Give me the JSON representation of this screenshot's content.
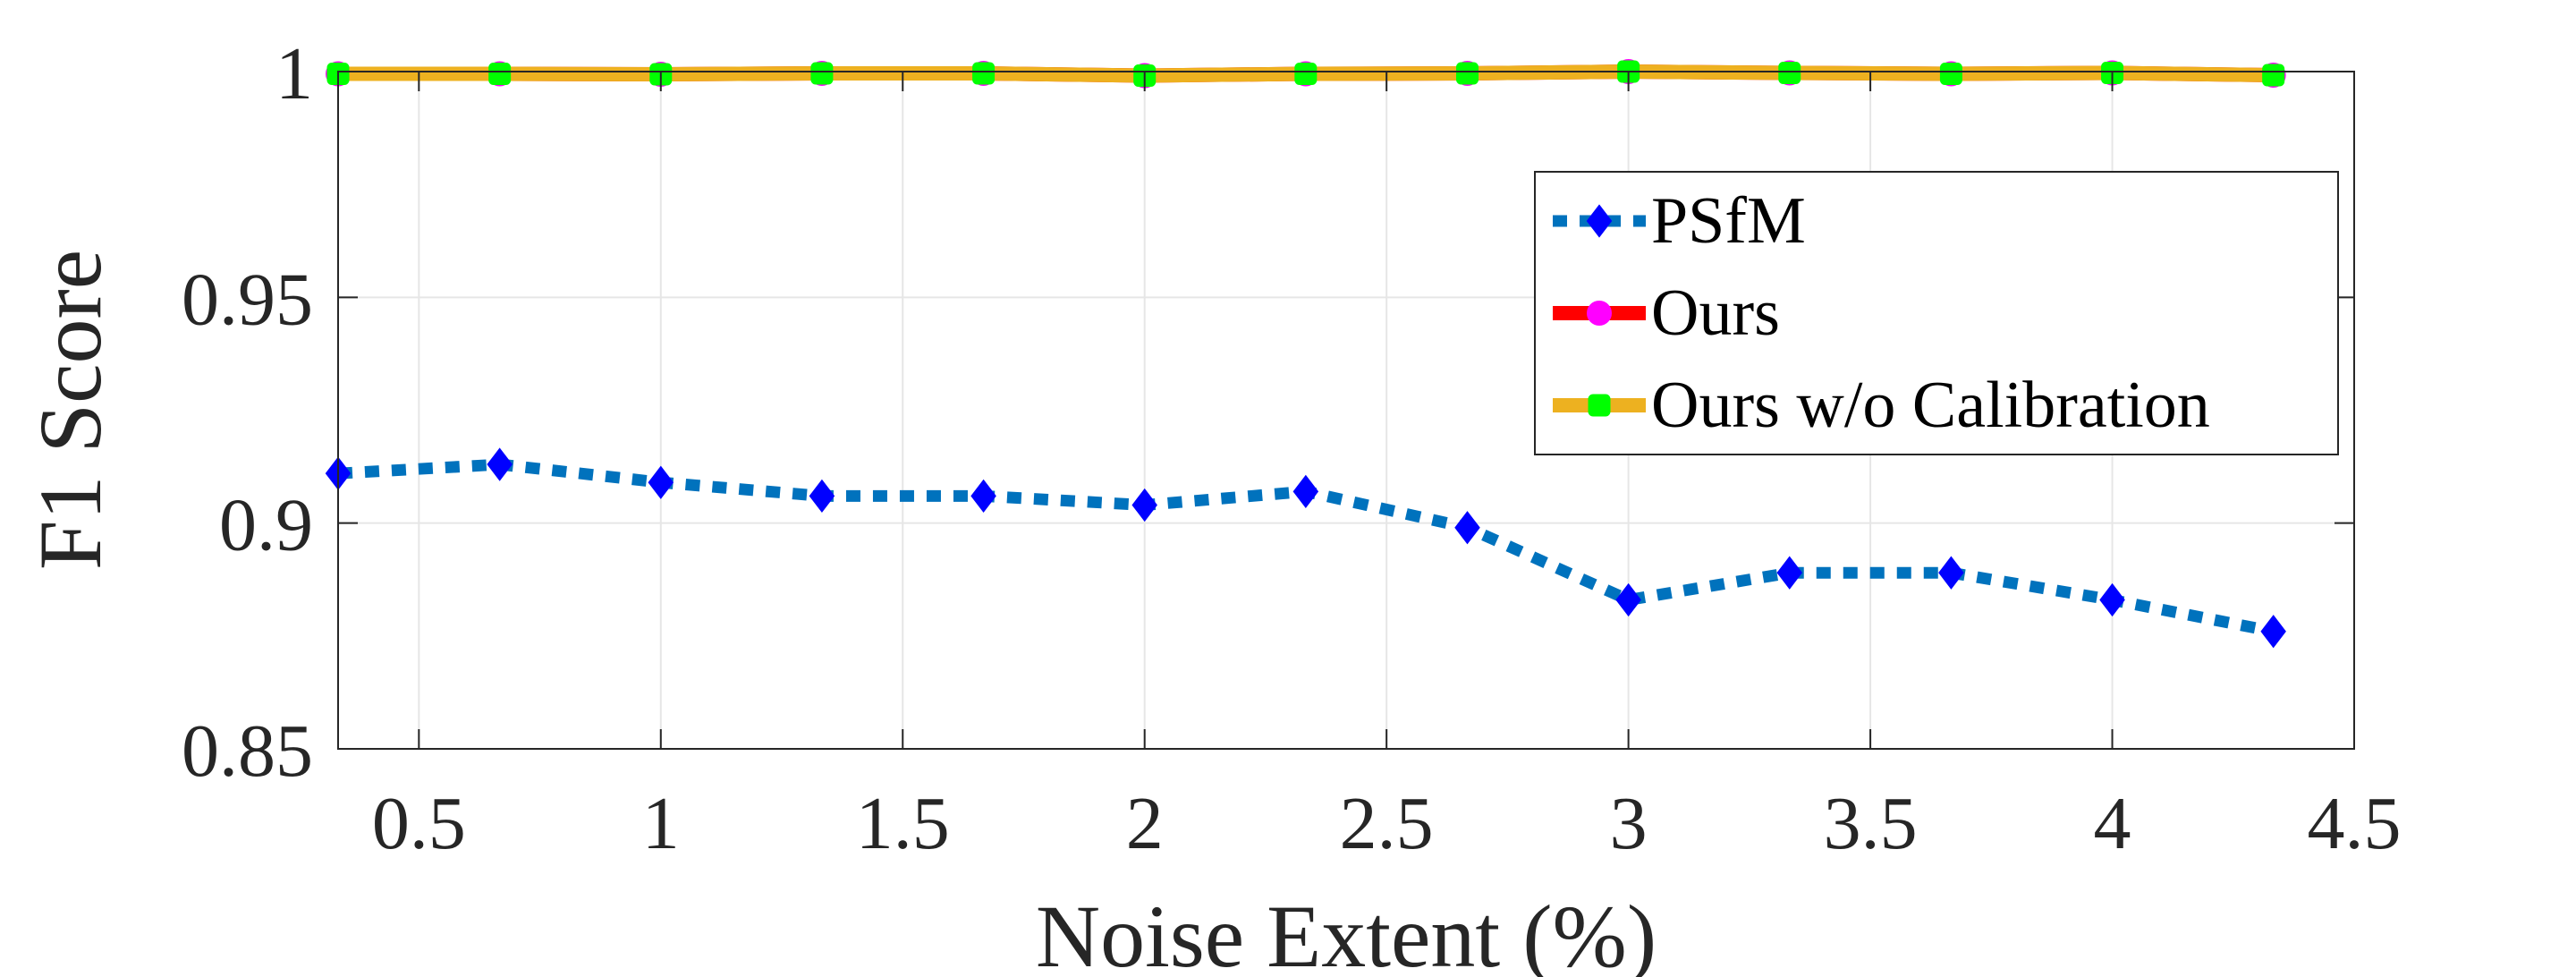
{
  "chart_data": {
    "type": "line",
    "xlabel": "Noise Extent (%)",
    "ylabel": "F1 Score",
    "xlim": [
      0.333,
      4.5
    ],
    "ylim": [
      0.85,
      1.0
    ],
    "xticks": [
      0.5,
      1,
      1.5,
      2,
      2.5,
      3,
      3.5,
      4,
      4.5
    ],
    "xtick_labels": [
      "0.5",
      "1",
      "1.5",
      "2",
      "2.5",
      "3",
      "3.5",
      "4",
      "4.5"
    ],
    "yticks": [
      0.85,
      0.9,
      0.95,
      1.0
    ],
    "ytick_labels": [
      "0.85",
      "0.9",
      "0.95",
      "1"
    ],
    "grid": true,
    "legend_position": "upper-right",
    "x": [
      0.333,
      0.667,
      1.0,
      1.333,
      1.667,
      2.0,
      2.333,
      2.667,
      3.0,
      3.333,
      3.667,
      4.0,
      4.333
    ],
    "series": [
      {
        "name": "PSfM",
        "color": "#0072BD",
        "marker_color": "#0000FF",
        "line_style": "dotted",
        "marker": "diamond",
        "values": [
          0.911,
          0.913,
          0.909,
          0.906,
          0.906,
          0.904,
          0.907,
          0.899,
          0.883,
          0.889,
          0.889,
          0.883,
          0.876
        ]
      },
      {
        "name": "Ours",
        "color": "#FF0000",
        "marker_color": "#FF00FF",
        "line_style": "solid",
        "marker": "circle",
        "values": [
          0.9995,
          0.9995,
          0.9994,
          0.9996,
          0.9996,
          0.9991,
          0.9995,
          0.9996,
          1.0,
          0.9997,
          0.9995,
          0.9997,
          0.9992
        ]
      },
      {
        "name": "Ours w/o Calibration",
        "color": "#EDB120",
        "marker_color": "#00FF00",
        "line_style": "solid",
        "marker": "square",
        "values": [
          0.9995,
          0.9995,
          0.9994,
          0.9996,
          0.9996,
          0.9991,
          0.9995,
          0.9996,
          1.0,
          0.9997,
          0.9995,
          0.9997,
          0.9992
        ]
      }
    ]
  }
}
